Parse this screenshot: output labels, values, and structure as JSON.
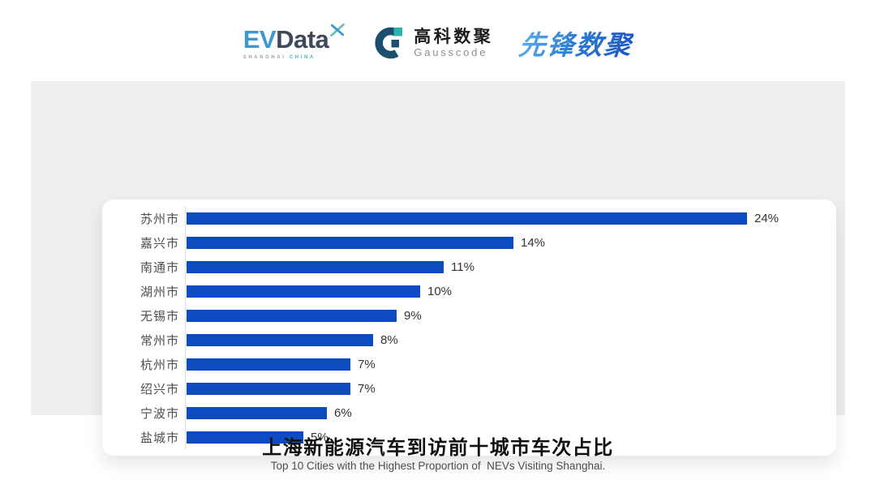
{
  "logos": {
    "evdata": {
      "text_ev": "EV",
      "text_data": "Data",
      "sub_left": "SHANGHAI",
      "sub_right": "CHINA",
      "colors": {
        "ev": "#3f97d2",
        "data": "#3e4a5c",
        "china": "#3bb4d8"
      }
    },
    "gausscode": {
      "cn": "高科数聚",
      "en": "Gausscode",
      "mark_dark": "#1b4f6e",
      "mark_teal": "#2cb3ab"
    },
    "pioneer": {
      "text": "先锋数聚"
    }
  },
  "chart_data": {
    "type": "bar",
    "orientation": "horizontal",
    "categories": [
      "苏州市",
      "嘉兴市",
      "南通市",
      "湖州市",
      "无锡市",
      "常州市",
      "杭州市",
      "绍兴市",
      "宁波市",
      "盐城市"
    ],
    "values": [
      24,
      14,
      11,
      10,
      9,
      8,
      7,
      7,
      6,
      5
    ],
    "value_labels": [
      "24%",
      "14%",
      "11%",
      "10%",
      "9%",
      "8%",
      "7%",
      "7%",
      "6%",
      "5%"
    ],
    "bar_color": "#0d4cc0",
    "xlim": [
      0,
      25
    ],
    "grid": false,
    "legend": false,
    "title": "上海新能源汽车到访前十城市车次占比",
    "subtitle": "Top 10 Cities with the Highest Proportion of  NEVs Visiting Shanghai."
  },
  "footer": {
    "title": "上海新能源汽车到访前十城市车次占比",
    "subtitle": "Top 10 Cities with the Highest Proportion of  NEVs Visiting Shanghai."
  }
}
